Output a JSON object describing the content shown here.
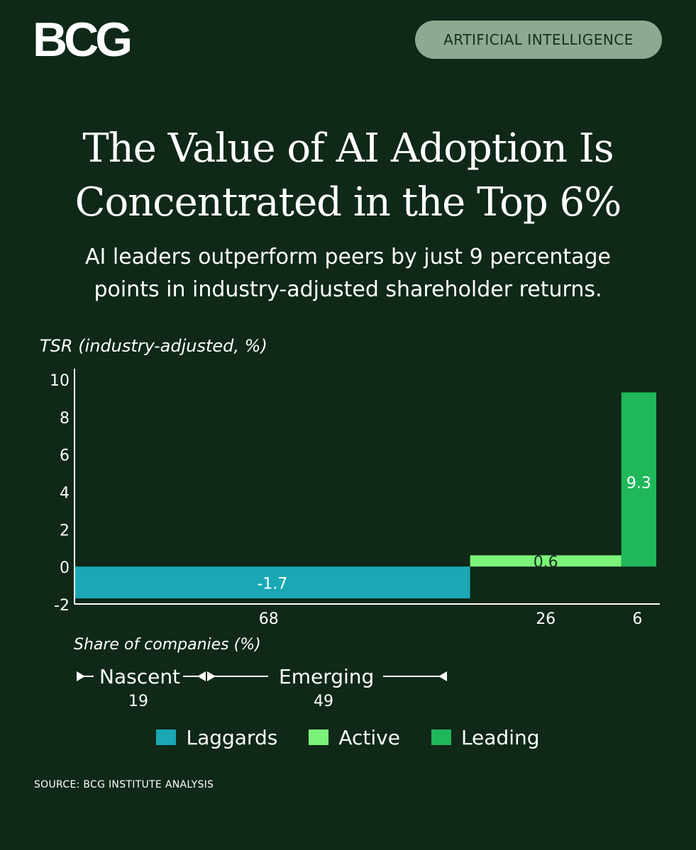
{
  "header": {
    "logo_text": "BCG",
    "tag": "ARTIFICIAL INTELLIGENCE"
  },
  "title_lines": [
    "The Value of AI Adoption Is",
    "Concentrated in the Top 6%"
  ],
  "subtitle_lines": [
    "AI leaders outperform peers by just 9 percentage",
    "points in industry-adjusted shareholder returns."
  ],
  "source": "SOURCE: BCG INSTITUTE ANALYSIS",
  "chart_data": {
    "type": "bar",
    "ylabel": "TSR (industry-adjusted, %)",
    "xlabel": "Share of companies (%)",
    "ylim": [
      -2,
      10
    ],
    "yticks": [
      "10",
      "8",
      "6",
      "4",
      "2",
      "0",
      "-2"
    ],
    "bars": [
      {
        "name": "Laggards",
        "share": 68,
        "share_label": "68",
        "value": -1.7,
        "value_label": "-1.7",
        "color": "#1aa8b5"
      },
      {
        "name": "Active",
        "share": 26,
        "share_label": "26",
        "value": 0.6,
        "value_label": "0.6",
        "color": "#7cf27a"
      },
      {
        "name": "Leading",
        "share": 6,
        "share_label": "6",
        "value": 9.3,
        "value_label": "9.3",
        "color": "#1fb75a"
      }
    ],
    "brackets": [
      {
        "label": "Nascent",
        "value": "19"
      },
      {
        "label": "Emerging",
        "value": "49"
      }
    ],
    "legend": [
      {
        "label": "Laggards",
        "color": "#1aa8b5"
      },
      {
        "label": "Active",
        "color": "#7cf27a"
      },
      {
        "label": "Leading",
        "color": "#1fb75a"
      }
    ]
  }
}
